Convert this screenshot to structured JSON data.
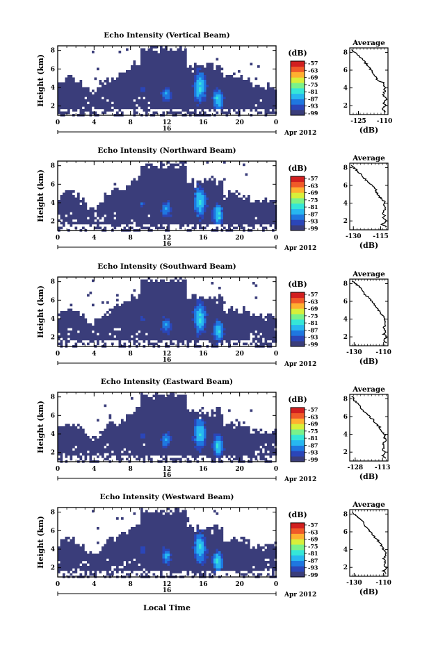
{
  "chart_data": [
    {
      "type": "heatmap",
      "title": "Echo Intensity (Vertical Beam)",
      "ylabel": "Height (km)",
      "xticks": [
        "0",
        "4",
        "8",
        "12",
        "16",
        "20",
        "0"
      ],
      "ylim": [
        1,
        8.5
      ],
      "yticks": [
        "2",
        "4",
        "6",
        "8"
      ],
      "date_tick": "16",
      "date_label": "Apr 2012",
      "cbar_unit": "(dB)",
      "cbar_ticks": [
        "-57",
        "-63",
        "-69",
        "-75",
        "-81",
        "-87",
        "-93",
        "-99"
      ],
      "avg_title": "Average",
      "avg_xlabel": "(dB)",
      "avg_xticks": [
        "-125",
        "-110"
      ],
      "avg_xlim": [
        -130,
        -108
      ],
      "avg_yticks": [
        "2",
        "4",
        "6",
        "8"
      ],
      "avg_profile": [
        [
          1.3,
          -109
        ],
        [
          1.6,
          -111
        ],
        [
          2.0,
          -109.5
        ],
        [
          2.3,
          -111
        ],
        [
          2.6,
          -109
        ],
        [
          3.0,
          -110
        ],
        [
          3.3,
          -111
        ],
        [
          3.7,
          -109.5
        ],
        [
          4.0,
          -110
        ],
        [
          4.3,
          -110.5
        ],
        [
          4.6,
          -111
        ],
        [
          4.9,
          -114
        ],
        [
          5.2,
          -115
        ],
        [
          5.6,
          -116
        ],
        [
          6.0,
          -118
        ],
        [
          6.4,
          -119
        ],
        [
          6.8,
          -121
        ],
        [
          7.3,
          -123
        ],
        [
          7.7,
          -125
        ],
        [
          8.0,
          -127
        ],
        [
          8.3,
          -129
        ]
      ]
    },
    {
      "type": "heatmap",
      "title": "Echo Intensity (Northward Beam)",
      "ylabel": "Height (km)",
      "xticks": [
        "0",
        "4",
        "8",
        "12",
        "16",
        "20",
        "0"
      ],
      "ylim": [
        1,
        8.5
      ],
      "yticks": [
        "2",
        "4",
        "6",
        "8"
      ],
      "date_tick": "16",
      "date_label": "Apr 2012",
      "cbar_unit": "(dB)",
      "cbar_ticks": [
        "-57",
        "-63",
        "-69",
        "-75",
        "-81",
        "-87",
        "-93",
        "-99"
      ],
      "avg_title": "Average",
      "avg_xlabel": "(dB)",
      "avg_xticks": [
        "-130",
        "-115"
      ],
      "avg_xlim": [
        -132,
        -111
      ],
      "avg_yticks": [
        "2",
        "4",
        "6",
        "8"
      ],
      "avg_profile": [
        [
          1.3,
          -112
        ],
        [
          1.6,
          -114
        ],
        [
          2.0,
          -112
        ],
        [
          2.3,
          -114
        ],
        [
          2.6,
          -113
        ],
        [
          3.0,
          -114
        ],
        [
          3.3,
          -112.5
        ],
        [
          3.7,
          -113
        ],
        [
          4.0,
          -113
        ],
        [
          4.3,
          -113.5
        ],
        [
          4.6,
          -115
        ],
        [
          4.9,
          -116
        ],
        [
          5.2,
          -117
        ],
        [
          5.6,
          -118
        ],
        [
          6.0,
          -120
        ],
        [
          6.4,
          -122
        ],
        [
          6.8,
          -124
        ],
        [
          7.3,
          -126
        ],
        [
          7.7,
          -128
        ],
        [
          8.0,
          -130
        ],
        [
          8.3,
          -131
        ]
      ]
    },
    {
      "type": "heatmap",
      "title": "Echo Intensity (Southward Beam)",
      "ylabel": "Height (km)",
      "xticks": [
        "0",
        "4",
        "8",
        "12",
        "16",
        "20",
        "0"
      ],
      "ylim": [
        1,
        8.5
      ],
      "yticks": [
        "2",
        "4",
        "6",
        "8"
      ],
      "date_tick": "16",
      "date_label": "Apr 2012",
      "cbar_unit": "(dB)",
      "cbar_ticks": [
        "-57",
        "-63",
        "-69",
        "-75",
        "-81",
        "-87",
        "-93",
        "-99"
      ],
      "avg_title": "Average",
      "avg_xlabel": "(dB)",
      "avg_xticks": [
        "-130",
        "-110"
      ],
      "avg_xlim": [
        -133,
        -107
      ],
      "avg_yticks": [
        "2",
        "4",
        "6",
        "8"
      ],
      "avg_profile": [
        [
          1.3,
          -108
        ],
        [
          1.6,
          -110
        ],
        [
          2.0,
          -108
        ],
        [
          2.3,
          -110
        ],
        [
          2.6,
          -109
        ],
        [
          3.0,
          -110
        ],
        [
          3.3,
          -108.5
        ],
        [
          3.7,
          -109
        ],
        [
          4.0,
          -109
        ],
        [
          4.3,
          -110
        ],
        [
          4.6,
          -112
        ],
        [
          4.9,
          -113
        ],
        [
          5.2,
          -114
        ],
        [
          5.6,
          -116
        ],
        [
          6.0,
          -118
        ],
        [
          6.4,
          -120
        ],
        [
          6.8,
          -123
        ],
        [
          7.3,
          -125
        ],
        [
          7.7,
          -127
        ],
        [
          8.0,
          -129
        ],
        [
          8.3,
          -131
        ]
      ]
    },
    {
      "type": "heatmap",
      "title": "Echo Intensity (Eastward Beam)",
      "ylabel": "Height (km)",
      "xticks": [
        "0",
        "4",
        "8",
        "12",
        "16",
        "20",
        "0"
      ],
      "ylim": [
        1,
        8.5
      ],
      "yticks": [
        "2",
        "4",
        "6",
        "8"
      ],
      "date_tick": "16",
      "date_label": "Apr 2012",
      "cbar_unit": "(dB)",
      "cbar_ticks": [
        "-57",
        "-63",
        "-69",
        "-75",
        "-81",
        "-87",
        "-93",
        "-99"
      ],
      "avg_title": "Average",
      "avg_xlabel": "(dB)",
      "avg_xticks": [
        "-128",
        "-113"
      ],
      "avg_xlim": [
        -131,
        -110
      ],
      "avg_yticks": [
        "2",
        "4",
        "6",
        "8"
      ],
      "avg_profile": [
        [
          1.3,
          -111
        ],
        [
          1.6,
          -113
        ],
        [
          2.0,
          -111
        ],
        [
          2.3,
          -113
        ],
        [
          2.6,
          -112
        ],
        [
          3.0,
          -113
        ],
        [
          3.3,
          -111.5
        ],
        [
          3.7,
          -112
        ],
        [
          4.0,
          -112
        ],
        [
          4.3,
          -113
        ],
        [
          4.6,
          -114
        ],
        [
          4.9,
          -115
        ],
        [
          5.2,
          -116.5
        ],
        [
          5.6,
          -118
        ],
        [
          6.0,
          -120
        ],
        [
          6.4,
          -122
        ],
        [
          6.8,
          -124
        ],
        [
          7.3,
          -126
        ],
        [
          7.7,
          -128
        ],
        [
          8.0,
          -129
        ],
        [
          8.3,
          -130
        ]
      ]
    },
    {
      "type": "heatmap",
      "title": "Echo Intensity (Westward Beam)",
      "ylabel": "Height (km)",
      "xticks": [
        "0",
        "4",
        "8",
        "12",
        "16",
        "20",
        "0"
      ],
      "ylim": [
        1,
        8.5
      ],
      "yticks": [
        "2",
        "4",
        "6",
        "8"
      ],
      "date_tick": "16",
      "date_label": "Apr 2012",
      "cbar_unit": "(dB)",
      "cbar_ticks": [
        "-57",
        "-63",
        "-69",
        "-75",
        "-81",
        "-87",
        "-93",
        "-99"
      ],
      "avg_title": "Average",
      "avg_xlabel": "(dB)",
      "avg_xticks": [
        "-130",
        "-110"
      ],
      "avg_xlim": [
        -133,
        -107
      ],
      "avg_yticks": [
        "2",
        "4",
        "6",
        "8"
      ],
      "avg_profile": [
        [
          1.3,
          -108
        ],
        [
          1.6,
          -110
        ],
        [
          2.0,
          -108
        ],
        [
          2.3,
          -110
        ],
        [
          2.6,
          -109
        ],
        [
          3.0,
          -110
        ],
        [
          3.3,
          -108.5
        ],
        [
          3.7,
          -109
        ],
        [
          4.0,
          -110
        ],
        [
          4.3,
          -111
        ],
        [
          4.6,
          -112
        ],
        [
          4.9,
          -113
        ],
        [
          5.2,
          -115
        ],
        [
          5.6,
          -117
        ],
        [
          6.0,
          -119
        ],
        [
          6.4,
          -121
        ],
        [
          6.8,
          -123
        ],
        [
          7.3,
          -125
        ],
        [
          7.7,
          -128
        ],
        [
          8.0,
          -130
        ],
        [
          8.3,
          -131
        ]
      ]
    }
  ],
  "xaxis_label": "Local Time",
  "colors": {
    "background": "#ffffff",
    "base_echo": "#3a3d7a",
    "colormap": [
      "#3a3d7a",
      "#2b46b8",
      "#1f77e0",
      "#27b7f0",
      "#35e6d8",
      "#7af28a",
      "#d8ef3a",
      "#ffb030",
      "#f05a28",
      "#d11f1f"
    ]
  }
}
